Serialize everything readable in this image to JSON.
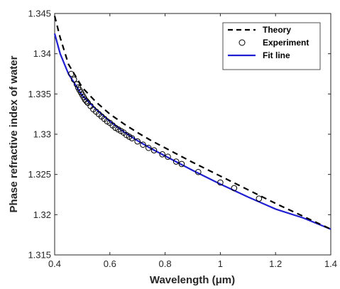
{
  "chart_data": {
    "type": "line",
    "xlabel": "Wavelength (μm)",
    "ylabel": "Phase refractive index of water",
    "xlim": [
      0.4,
      1.4
    ],
    "ylim": [
      1.315,
      1.345
    ],
    "x_ticks": [
      "0.4",
      "0.6",
      "0.8",
      "1",
      "1.2",
      "1.4"
    ],
    "y_ticks": [
      "1.315",
      "1.32",
      "1.325",
      "1.33",
      "1.335",
      "1.34",
      "1.345"
    ],
    "legend_position": "top-right",
    "grid": false,
    "series": [
      {
        "name": "Theory",
        "kind": "line",
        "style": "dashed",
        "color": "#000000",
        "x": [
          0.4,
          0.42,
          0.45,
          0.5,
          0.55,
          0.6,
          0.65,
          0.7,
          0.75,
          0.8,
          0.9,
          1.0,
          1.1,
          1.2,
          1.3,
          1.4
        ],
        "y": [
          1.3447,
          1.342,
          1.3387,
          1.3358,
          1.334,
          1.3325,
          1.3313,
          1.3302,
          1.3292,
          1.3283,
          1.3265,
          1.3248,
          1.3231,
          1.3214,
          1.3198,
          1.3182
        ]
      },
      {
        "name": "Experiment",
        "kind": "scatter",
        "marker": "circle",
        "color": "#000000",
        "x": [
          0.46,
          0.47,
          0.48,
          0.485,
          0.49,
          0.495,
          0.5,
          0.505,
          0.51,
          0.515,
          0.52,
          0.53,
          0.54,
          0.55,
          0.56,
          0.57,
          0.58,
          0.59,
          0.6,
          0.61,
          0.62,
          0.63,
          0.64,
          0.65,
          0.66,
          0.67,
          0.68,
          0.7,
          0.72,
          0.74,
          0.76,
          0.79,
          0.81,
          0.84,
          0.86,
          0.92,
          1.0,
          1.05,
          1.14
        ],
        "y": [
          1.3375,
          1.3368,
          1.3362,
          1.3358,
          1.3355,
          1.3352,
          1.3349,
          1.3346,
          1.3343,
          1.3341,
          1.3339,
          1.3335,
          1.3331,
          1.3328,
          1.3325,
          1.3322,
          1.3319,
          1.3316,
          1.3314,
          1.3311,
          1.3308,
          1.3306,
          1.3304,
          1.3302,
          1.3299,
          1.3297,
          1.3295,
          1.3291,
          1.3287,
          1.3283,
          1.328,
          1.3275,
          1.3272,
          1.3266,
          1.3263,
          1.3253,
          1.324,
          1.3233,
          1.322
        ]
      },
      {
        "name": "Fit line",
        "kind": "line",
        "style": "solid",
        "color": "#1f1fd1",
        "x": [
          0.4,
          0.42,
          0.45,
          0.5,
          0.55,
          0.6,
          0.65,
          0.7,
          0.75,
          0.8,
          0.9,
          1.0,
          1.1,
          1.2,
          1.3,
          1.4
        ],
        "y": [
          1.3425,
          1.34,
          1.3375,
          1.3348,
          1.3331,
          1.3316,
          1.3303,
          1.3292,
          1.3282,
          1.3273,
          1.3255,
          1.3238,
          1.3222,
          1.3207,
          1.3196,
          1.3182
        ]
      }
    ]
  }
}
